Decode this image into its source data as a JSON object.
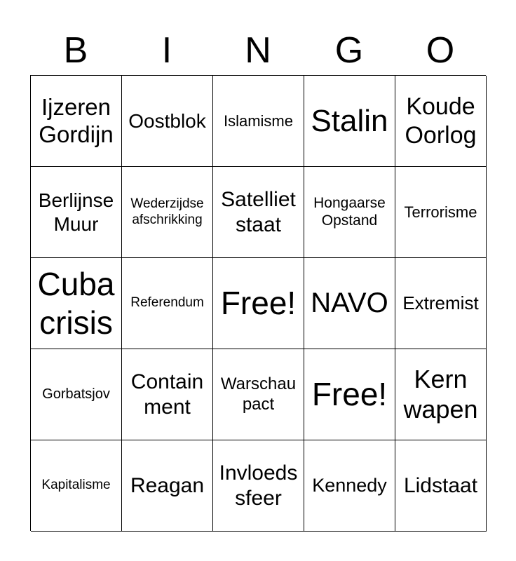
{
  "header": [
    "B",
    "I",
    "N",
    "G",
    "O"
  ],
  "cells": [
    [
      "Ijzeren Gordijn",
      "Oostblok",
      "Islamisme",
      "Stalin",
      "Koude Oorlog"
    ],
    [
      "Berlijnse Muur",
      "Wederzijdse afschrikking",
      "Satelliet staat",
      "Hongaarse Opstand",
      "Terrorisme"
    ],
    [
      "Cuba crisis",
      "Referendum",
      "Free!",
      "NAVO",
      "Extremist"
    ],
    [
      "Gorbatsjov",
      "Contain ment",
      "Warschau pact",
      "Free!",
      "Kern wapen"
    ],
    [
      "Kapitalisme",
      "Reagan",
      "Invloeds sfeer",
      "Kennedy",
      "Lidstaat"
    ]
  ]
}
